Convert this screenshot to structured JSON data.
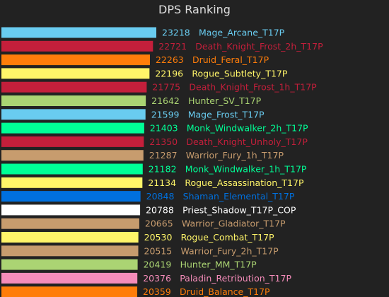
{
  "chart_data": {
    "type": "bar",
    "orientation": "horizontal",
    "title": "DPS Ranking",
    "xlabel": "",
    "ylabel": "",
    "grid": false,
    "legend": "none",
    "xlim": [
      0,
      23218
    ],
    "background": "#222222",
    "bars": [
      {
        "name": "Mage_Arcane_T17P",
        "value": 23218,
        "color": "#69ccf0"
      },
      {
        "name": "Death_Knight_Frost_2h_T17P",
        "value": 22721,
        "color": "#c41f3b"
      },
      {
        "name": "Druid_Feral_T17P",
        "value": 22263,
        "color": "#ff7d0a"
      },
      {
        "name": "Rogue_Subtlety_T17P",
        "value": 22196,
        "color": "#fff569"
      },
      {
        "name": "Death_Knight_Frost_1h_T17P",
        "value": 21775,
        "color": "#c41f3b"
      },
      {
        "name": "Hunter_SV_T17P",
        "value": 21642,
        "color": "#abd473"
      },
      {
        "name": "Mage_Frost_T17P",
        "value": 21599,
        "color": "#69ccf0"
      },
      {
        "name": "Monk_Windwalker_2h_T17P",
        "value": 21403,
        "color": "#00ff96"
      },
      {
        "name": "Death_Knight_Unholy_T17P",
        "value": 21350,
        "color": "#c41f3b"
      },
      {
        "name": "Warrior_Fury_1h_T17P",
        "value": 21287,
        "color": "#c79c6e"
      },
      {
        "name": "Monk_Windwalker_1h_T17P",
        "value": 21182,
        "color": "#00ff96"
      },
      {
        "name": "Rogue_Assassination_T17P",
        "value": 21134,
        "color": "#fff569"
      },
      {
        "name": "Shaman_Elemental_T17P",
        "value": 20848,
        "color": "#0070de"
      },
      {
        "name": "Priest_Shadow_T17P_COP",
        "value": 20788,
        "color": "#ffffff"
      },
      {
        "name": "Warrior_Gladiator_T17P",
        "value": 20665,
        "color": "#c79c6e"
      },
      {
        "name": "Rogue_Combat_T17P",
        "value": 20530,
        "color": "#fff569"
      },
      {
        "name": "Warrior_Fury_2h_T17P",
        "value": 20515,
        "color": "#c79c6e"
      },
      {
        "name": "Hunter_MM_T17P",
        "value": 20419,
        "color": "#abd473"
      },
      {
        "name": "Paladin_Retribution_T17P",
        "value": 20376,
        "color": "#f58cba"
      },
      {
        "name": "Druid_Balance_T17P",
        "value": 20359,
        "color": "#ff7d0a"
      }
    ]
  }
}
